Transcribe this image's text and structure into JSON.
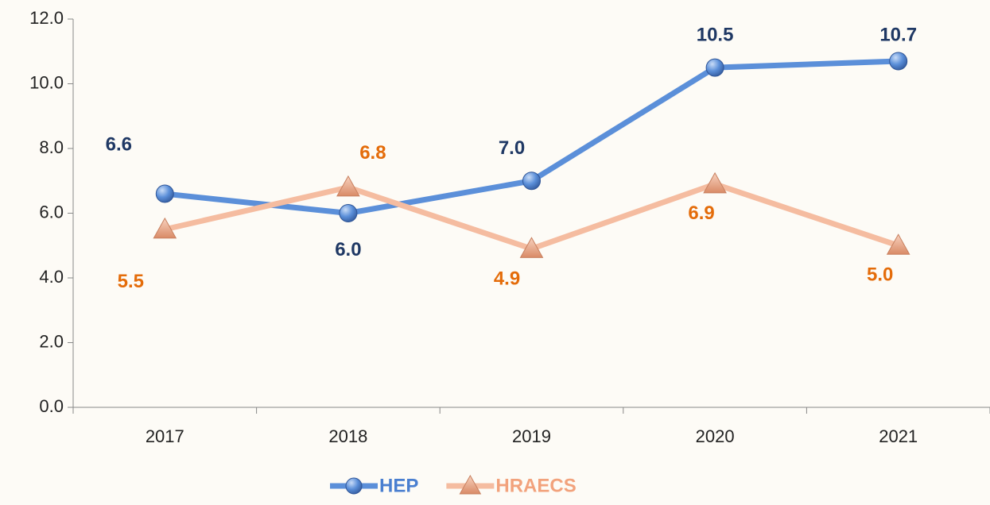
{
  "chart_data": {
    "type": "line",
    "categories": [
      "2017",
      "2018",
      "2019",
      "2020",
      "2021"
    ],
    "series": [
      {
        "name": "HEP",
        "color": "#5b8fd9",
        "label_color": "#1f3864",
        "marker": "circle",
        "values": [
          6.6,
          6.0,
          7.0,
          10.5,
          10.7
        ],
        "value_labels": [
          "6.6",
          "6.0",
          "7.0",
          "10.5",
          "10.7"
        ]
      },
      {
        "name": "HRAECS",
        "color": "#f5bca0",
        "label_color": "#e46c0a",
        "marker": "triangle",
        "values": [
          5.5,
          6.8,
          4.9,
          6.9,
          5.0
        ],
        "value_labels": [
          "5.5",
          "6.8",
          "4.9",
          "6.9",
          "5.0"
        ]
      }
    ],
    "ylim": [
      0,
      12
    ],
    "yticks": [
      {
        "value": 0,
        "label": "0.0"
      },
      {
        "value": 2,
        "label": "2.0"
      },
      {
        "value": 4,
        "label": "4.0"
      },
      {
        "value": 6,
        "label": "6.0"
      },
      {
        "value": 8,
        "label": "8.0"
      },
      {
        "value": 10,
        "label": "10.0"
      },
      {
        "value": 12,
        "label": "12.0"
      }
    ],
    "grid": false,
    "legend": "bottom"
  }
}
